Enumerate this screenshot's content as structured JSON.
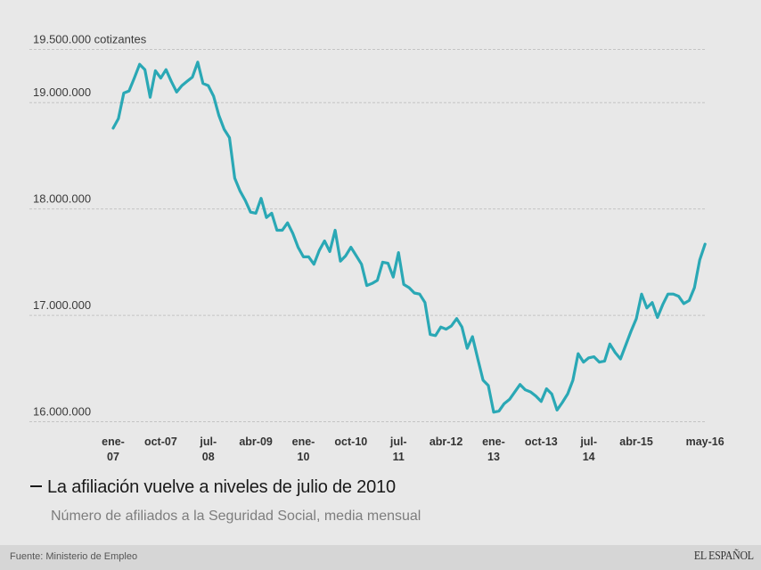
{
  "chart_data": {
    "type": "line",
    "title": "La afiliación vuelve a niveles de julio de 2010",
    "subtitle": "Número de afiliados a la Seguridad Social, media mensual",
    "xlabel": "",
    "ylabel": "cotizantes",
    "ylim": [
      16000000,
      19500000
    ],
    "grid": true,
    "y_ticks": [
      {
        "value": 19500000,
        "label": "19.500.000 cotizantes"
      },
      {
        "value": 19000000,
        "label": "19.000.000"
      },
      {
        "value": 18000000,
        "label": "18.000.000"
      },
      {
        "value": 17000000,
        "label": "17.000.000"
      },
      {
        "value": 16000000,
        "label": "16.000.000"
      }
    ],
    "x_ticks": [
      {
        "index": 0,
        "line1": "ene-",
        "line2": "07"
      },
      {
        "index": 9,
        "line1": "oct-07",
        "line2": ""
      },
      {
        "index": 18,
        "line1": "jul-",
        "line2": "08"
      },
      {
        "index": 27,
        "line1": "abr-09",
        "line2": ""
      },
      {
        "index": 36,
        "line1": "ene-",
        "line2": "10"
      },
      {
        "index": 45,
        "line1": "oct-10",
        "line2": ""
      },
      {
        "index": 54,
        "line1": "jul-",
        "line2": "11"
      },
      {
        "index": 63,
        "line1": "abr-12",
        "line2": ""
      },
      {
        "index": 72,
        "line1": "ene-",
        "line2": "13"
      },
      {
        "index": 81,
        "line1": "oct-13",
        "line2": ""
      },
      {
        "index": 90,
        "line1": "jul-",
        "line2": "14"
      },
      {
        "index": 99,
        "line1": "abr-15",
        "line2": ""
      },
      {
        "index": 112,
        "line1": "may-16",
        "line2": ""
      }
    ],
    "x_start": "ene-07",
    "x_end": "may-16",
    "x_unit": "month",
    "series": [
      {
        "name": "Afiliados a la Seguridad Social",
        "color": "#2aa8b5",
        "values": [
          18760000,
          18850000,
          19090000,
          19110000,
          19230000,
          19360000,
          19310000,
          19050000,
          19300000,
          19230000,
          19310000,
          19200000,
          19100000,
          19160000,
          19200000,
          19240000,
          19380000,
          19180000,
          19160000,
          19060000,
          18880000,
          18750000,
          18670000,
          18290000,
          18170000,
          18080000,
          17970000,
          17960000,
          18100000,
          17920000,
          17960000,
          17800000,
          17800000,
          17870000,
          17770000,
          17640000,
          17550000,
          17550000,
          17480000,
          17610000,
          17700000,
          17600000,
          17800000,
          17510000,
          17560000,
          17640000,
          17560000,
          17480000,
          17280000,
          17300000,
          17330000,
          17500000,
          17490000,
          17360000,
          17590000,
          17290000,
          17260000,
          17210000,
          17200000,
          17120000,
          16820000,
          16810000,
          16890000,
          16870000,
          16900000,
          16970000,
          16890000,
          16690000,
          16800000,
          16590000,
          16390000,
          16340000,
          16090000,
          16100000,
          16170000,
          16210000,
          16280000,
          16350000,
          16300000,
          16280000,
          16240000,
          16190000,
          16310000,
          16260000,
          16110000,
          16180000,
          16260000,
          16390000,
          16640000,
          16560000,
          16600000,
          16610000,
          16560000,
          16570000,
          16730000,
          16650000,
          16590000,
          16720000,
          16850000,
          16970000,
          17200000,
          17070000,
          17120000,
          16980000,
          17100000,
          17200000,
          17200000,
          17180000,
          17110000,
          17140000,
          17260000,
          17520000,
          17670000
        ]
      }
    ]
  },
  "footer": {
    "source": "Fuente: Ministerio de Empleo",
    "logo": "EL ESPAÑOL"
  }
}
